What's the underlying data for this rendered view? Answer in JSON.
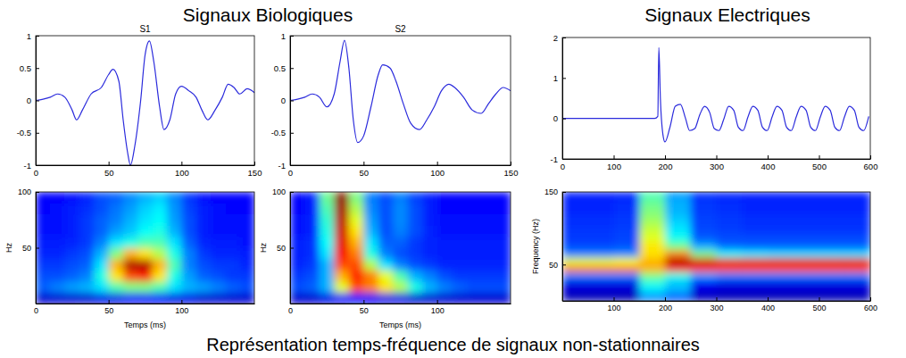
{
  "headings": [
    "Signaux Biologiques",
    "Signaux Electriques"
  ],
  "caption": "Représentation temps-fréquence de signaux non-stationnaires",
  "chart_data": [
    {
      "type": "line",
      "title": "S1",
      "color": "#2b2bdc",
      "x": [
        0,
        5,
        10,
        15,
        20,
        25,
        28,
        32,
        38,
        45,
        50,
        53,
        57,
        60,
        63,
        65,
        68,
        72,
        75,
        78,
        81,
        85,
        88,
        92,
        96,
        100,
        105,
        110,
        114,
        118,
        123,
        128,
        132,
        136,
        140,
        145,
        150
      ],
      "values": [
        0,
        0.02,
        0.05,
        0.1,
        0.05,
        -0.15,
        -0.3,
        -0.15,
        0.1,
        0.2,
        0.4,
        0.48,
        0.3,
        -0.3,
        -0.8,
        -1,
        -0.7,
        0,
        0.7,
        0.92,
        0.6,
        -0.1,
        -0.45,
        -0.3,
        0.1,
        0.22,
        0.15,
        0.05,
        -0.15,
        -0.3,
        -0.15,
        0.05,
        0.25,
        0.2,
        0.1,
        0.18,
        0.12
      ],
      "xlim": [
        0,
        150
      ],
      "xticks": [
        0,
        50,
        100,
        150
      ],
      "ylim": [
        -1,
        1
      ],
      "yticks": [
        -1,
        -0.5,
        0,
        0.5,
        1
      ]
    },
    {
      "type": "line",
      "title": "S2",
      "color": "#2b2bdc",
      "x": [
        0,
        5,
        10,
        15,
        20,
        25,
        30,
        34,
        37,
        40,
        43,
        46,
        50,
        55,
        60,
        63,
        68,
        72,
        77,
        82,
        88,
        93,
        98,
        103,
        108,
        112,
        118,
        124,
        130,
        135,
        140,
        145,
        150
      ],
      "values": [
        0,
        0.02,
        0.05,
        0.1,
        0.05,
        -0.1,
        0.1,
        0.6,
        0.93,
        0.5,
        -0.3,
        -0.65,
        -0.55,
        -0.1,
        0.4,
        0.55,
        0.5,
        0.3,
        -0.05,
        -0.35,
        -0.45,
        -0.3,
        -0.1,
        0.15,
        0.25,
        0.2,
        0.05,
        -0.15,
        -0.2,
        -0.05,
        0.1,
        0.2,
        0.15
      ],
      "xlim": [
        0,
        150
      ],
      "xticks": [
        0,
        50,
        100,
        150
      ],
      "ylim": [
        -1,
        1
      ],
      "yticks": [
        -1,
        -0.5,
        0,
        0.5,
        1
      ]
    },
    {
      "type": "line",
      "color": "#2b2bdc",
      "x": [
        0,
        50,
        100,
        150,
        180,
        186,
        188,
        191,
        196,
        200,
        210,
        220,
        230,
        240,
        248,
        258,
        268,
        277,
        287,
        296,
        305,
        315,
        324,
        334,
        343,
        352,
        362,
        371,
        381,
        390,
        399,
        409,
        418,
        428,
        437,
        446,
        456,
        465,
        475,
        484,
        493,
        503,
        512,
        522,
        531,
        540,
        550,
        559,
        569,
        578,
        587,
        597
      ],
      "values": [
        0,
        0,
        0,
        0,
        0,
        0.05,
        1.75,
        0.5,
        -0.4,
        -0.58,
        -0.2,
        0.3,
        0.35,
        0,
        -0.3,
        -0.25,
        0.1,
        0.3,
        0.15,
        -0.25,
        -0.3,
        0,
        0.3,
        0.2,
        -0.22,
        -0.3,
        0.05,
        0.3,
        0.2,
        -0.22,
        -0.3,
        0.05,
        0.3,
        0.2,
        -0.22,
        -0.3,
        0.05,
        0.3,
        0.2,
        -0.22,
        -0.3,
        0.05,
        0.3,
        0.2,
        -0.22,
        -0.3,
        0.05,
        0.3,
        0.2,
        -0.22,
        -0.3,
        0.05
      ],
      "xlim": [
        0,
        600
      ],
      "xticks": [
        0,
        100,
        200,
        300,
        400,
        500,
        600
      ],
      "ylim": [
        -1,
        2
      ],
      "yticks": [
        -1,
        0,
        1,
        2
      ]
    },
    {
      "type": "heatmap",
      "xlabel": "Temps (ms)",
      "ylabel": "Hz",
      "x_edges": [
        0,
        10,
        20,
        30,
        40,
        50,
        60,
        70,
        80,
        90,
        100,
        110,
        120,
        130,
        140,
        150
      ],
      "y_edges": [
        0,
        10,
        20,
        30,
        40,
        50,
        60,
        70,
        80,
        90,
        100
      ],
      "z": [
        [
          0.08,
          0.08,
          0.08,
          0.08,
          0.1,
          0.1,
          0.12,
          0.12,
          0.12,
          0.1,
          0.1,
          0.08,
          0.08,
          0.08,
          0.08
        ],
        [
          0.22,
          0.25,
          0.28,
          0.3,
          0.35,
          0.45,
          0.5,
          0.5,
          0.45,
          0.35,
          0.3,
          0.28,
          0.25,
          0.22,
          0.2
        ],
        [
          0.2,
          0.2,
          0.22,
          0.25,
          0.4,
          0.65,
          0.8,
          0.85,
          0.65,
          0.4,
          0.28,
          0.22,
          0.2,
          0.18,
          0.18
        ],
        [
          0.18,
          0.18,
          0.2,
          0.22,
          0.35,
          0.7,
          0.95,
          0.95,
          0.7,
          0.45,
          0.25,
          0.2,
          0.18,
          0.18,
          0.16
        ],
        [
          0.16,
          0.16,
          0.18,
          0.2,
          0.3,
          0.5,
          0.7,
          0.65,
          0.55,
          0.4,
          0.25,
          0.18,
          0.16,
          0.16,
          0.15
        ],
        [
          0.15,
          0.15,
          0.16,
          0.18,
          0.25,
          0.35,
          0.4,
          0.45,
          0.45,
          0.35,
          0.22,
          0.16,
          0.15,
          0.15,
          0.14
        ],
        [
          0.14,
          0.14,
          0.15,
          0.18,
          0.22,
          0.28,
          0.32,
          0.38,
          0.4,
          0.3,
          0.2,
          0.15,
          0.14,
          0.14,
          0.14
        ],
        [
          0.14,
          0.14,
          0.15,
          0.18,
          0.22,
          0.25,
          0.3,
          0.35,
          0.38,
          0.28,
          0.2,
          0.15,
          0.14,
          0.14,
          0.14
        ],
        [
          0.13,
          0.14,
          0.15,
          0.17,
          0.2,
          0.24,
          0.28,
          0.33,
          0.36,
          0.27,
          0.19,
          0.15,
          0.14,
          0.13,
          0.13
        ],
        [
          0.13,
          0.13,
          0.14,
          0.16,
          0.2,
          0.22,
          0.26,
          0.3,
          0.33,
          0.26,
          0.18,
          0.14,
          0.13,
          0.13,
          0.13
        ]
      ],
      "zlim": [
        0,
        1
      ],
      "xlim": [
        0,
        150
      ],
      "xticks": [
        0,
        50,
        100
      ],
      "ylim": [
        0,
        100
      ],
      "yticks": [
        50,
        100
      ]
    },
    {
      "type": "heatmap",
      "xlabel": "Temps (ms)",
      "ylabel": "Hz",
      "x_edges": [
        0,
        10,
        20,
        30,
        40,
        50,
        60,
        70,
        80,
        90,
        100,
        110,
        120,
        130,
        140,
        150
      ],
      "y_edges": [
        0,
        10,
        20,
        30,
        40,
        50,
        60,
        70,
        80,
        90,
        100
      ],
      "z": [
        [
          0.08,
          0.08,
          0.1,
          0.12,
          0.15,
          0.12,
          0.1,
          0.1,
          0.08,
          0.08,
          0.08,
          0.08,
          0.08,
          0.08,
          0.08
        ],
        [
          0.2,
          0.22,
          0.3,
          0.6,
          0.8,
          0.75,
          0.65,
          0.55,
          0.4,
          0.3,
          0.25,
          0.22,
          0.2,
          0.2,
          0.2
        ],
        [
          0.18,
          0.2,
          0.3,
          0.7,
          0.85,
          0.75,
          0.6,
          0.45,
          0.3,
          0.25,
          0.2,
          0.18,
          0.18,
          0.18,
          0.18
        ],
        [
          0.16,
          0.18,
          0.3,
          0.8,
          0.8,
          0.55,
          0.35,
          0.25,
          0.2,
          0.18,
          0.16,
          0.16,
          0.16,
          0.16,
          0.16
        ],
        [
          0.15,
          0.17,
          0.35,
          0.88,
          0.75,
          0.4,
          0.25,
          0.2,
          0.18,
          0.16,
          0.15,
          0.15,
          0.15,
          0.15,
          0.15
        ],
        [
          0.15,
          0.17,
          0.38,
          0.9,
          0.7,
          0.35,
          0.22,
          0.22,
          0.18,
          0.16,
          0.15,
          0.15,
          0.15,
          0.15,
          0.15
        ],
        [
          0.14,
          0.16,
          0.4,
          0.92,
          0.65,
          0.3,
          0.2,
          0.25,
          0.2,
          0.16,
          0.14,
          0.14,
          0.14,
          0.14,
          0.14
        ],
        [
          0.14,
          0.16,
          0.42,
          0.94,
          0.6,
          0.28,
          0.2,
          0.26,
          0.2,
          0.15,
          0.14,
          0.14,
          0.14,
          0.14,
          0.14
        ],
        [
          0.13,
          0.15,
          0.45,
          0.96,
          0.55,
          0.26,
          0.2,
          0.26,
          0.2,
          0.15,
          0.13,
          0.13,
          0.13,
          0.13,
          0.13
        ],
        [
          0.13,
          0.15,
          0.48,
          0.98,
          0.5,
          0.25,
          0.2,
          0.25,
          0.19,
          0.15,
          0.13,
          0.13,
          0.13,
          0.13,
          0.13
        ]
      ],
      "zlim": [
        0,
        1
      ],
      "xlim": [
        0,
        150
      ],
      "xticks": [
        0,
        50,
        100
      ],
      "ylim": [
        0,
        100
      ],
      "yticks": [
        50,
        100
      ]
    },
    {
      "type": "heatmap",
      "ylabel": "Frequency (Hz)",
      "x_edges": [
        0,
        50,
        100,
        150,
        200,
        250,
        300,
        350,
        400,
        450,
        500,
        550,
        600
      ],
      "y_edges": [
        0,
        10,
        20,
        30,
        40,
        50,
        60,
        70,
        80,
        90,
        100,
        110,
        120,
        130,
        140,
        150
      ],
      "z": [
        [
          0.05,
          0.05,
          0.05,
          0.25,
          0.2,
          0.06,
          0.05,
          0.05,
          0.05,
          0.05,
          0.05,
          0.05
        ],
        [
          0.08,
          0.08,
          0.08,
          0.35,
          0.3,
          0.09,
          0.08,
          0.08,
          0.08,
          0.08,
          0.08,
          0.08
        ],
        [
          0.1,
          0.1,
          0.1,
          0.4,
          0.32,
          0.12,
          0.1,
          0.1,
          0.1,
          0.1,
          0.1,
          0.1
        ],
        [
          0.25,
          0.25,
          0.25,
          0.5,
          0.4,
          0.28,
          0.25,
          0.25,
          0.25,
          0.25,
          0.25,
          0.25
        ],
        [
          0.75,
          0.75,
          0.75,
          0.7,
          0.85,
          0.82,
          0.8,
          0.8,
          0.8,
          0.8,
          0.8,
          0.8
        ],
        [
          0.6,
          0.6,
          0.62,
          0.7,
          0.95,
          0.92,
          0.9,
          0.9,
          0.9,
          0.9,
          0.9,
          0.9
        ],
        [
          0.25,
          0.25,
          0.26,
          0.65,
          0.75,
          0.5,
          0.38,
          0.36,
          0.35,
          0.35,
          0.35,
          0.35
        ],
        [
          0.2,
          0.2,
          0.21,
          0.65,
          0.5,
          0.3,
          0.23,
          0.22,
          0.22,
          0.22,
          0.22,
          0.22
        ],
        [
          0.18,
          0.18,
          0.19,
          0.6,
          0.4,
          0.22,
          0.2,
          0.2,
          0.2,
          0.2,
          0.2,
          0.2
        ],
        [
          0.18,
          0.18,
          0.19,
          0.58,
          0.36,
          0.2,
          0.19,
          0.18,
          0.18,
          0.18,
          0.18,
          0.18
        ],
        [
          0.17,
          0.17,
          0.18,
          0.55,
          0.34,
          0.19,
          0.18,
          0.17,
          0.17,
          0.17,
          0.17,
          0.17
        ],
        [
          0.17,
          0.17,
          0.18,
          0.52,
          0.32,
          0.19,
          0.18,
          0.17,
          0.17,
          0.17,
          0.17,
          0.17
        ],
        [
          0.16,
          0.16,
          0.17,
          0.5,
          0.3,
          0.18,
          0.17,
          0.16,
          0.16,
          0.16,
          0.16,
          0.16
        ],
        [
          0.16,
          0.16,
          0.17,
          0.48,
          0.3,
          0.18,
          0.17,
          0.16,
          0.16,
          0.16,
          0.16,
          0.16
        ],
        [
          0.15,
          0.15,
          0.16,
          0.45,
          0.28,
          0.17,
          0.16,
          0.15,
          0.15,
          0.15,
          0.15,
          0.15
        ]
      ],
      "zlim": [
        0,
        1
      ],
      "xlim": [
        0,
        600
      ],
      "xticks": [
        100,
        200,
        300,
        400,
        500,
        600
      ],
      "ylim": [
        0,
        150
      ],
      "yticks": [
        50,
        150
      ]
    }
  ]
}
